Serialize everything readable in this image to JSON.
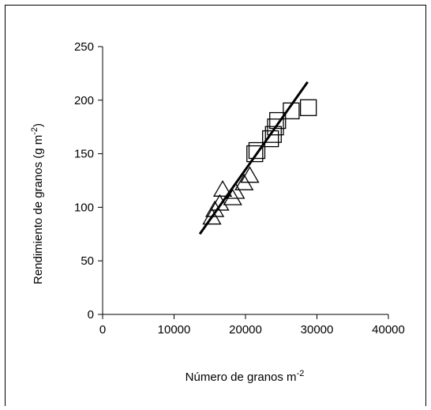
{
  "chart_data": {
    "type": "scatter",
    "xlabel": "Número de granos m",
    "xlabel_sup": "-2",
    "ylabel": "Rendimiento de granos (g m",
    "ylabel_sup": "-2",
    "ylabel_close": ")",
    "xlim": [
      0,
      40000
    ],
    "ylim": [
      0,
      250
    ],
    "x_ticks": [
      0,
      10000,
      20000,
      30000,
      40000
    ],
    "x_tick_labels": [
      "0",
      "10000",
      "20000",
      "30000",
      "40000"
    ],
    "y_ticks": [
      0,
      50,
      100,
      150,
      200,
      250
    ],
    "y_tick_labels": [
      "0",
      "50",
      "100",
      "150",
      "200",
      "250"
    ],
    "grid": false,
    "legend": "none",
    "series": [
      {
        "marker": "triangle",
        "color": "#000000",
        "x": [
          15300,
          15700,
          16400,
          16800,
          18200,
          18600,
          19800,
          20600
        ],
        "y": [
          90,
          97,
          103,
          116,
          108,
          114,
          122,
          129
        ]
      },
      {
        "marker": "square",
        "color": "#000000",
        "x": [
          21300,
          21600,
          23500,
          23900,
          24200,
          24500,
          26400,
          28800
        ],
        "y": [
          150,
          153,
          164,
          168,
          175,
          181,
          190,
          193
        ]
      }
    ],
    "trendline": {
      "x": [
        13600,
        28700
      ],
      "y": [
        75,
        217
      ],
      "color": "#000000"
    }
  }
}
